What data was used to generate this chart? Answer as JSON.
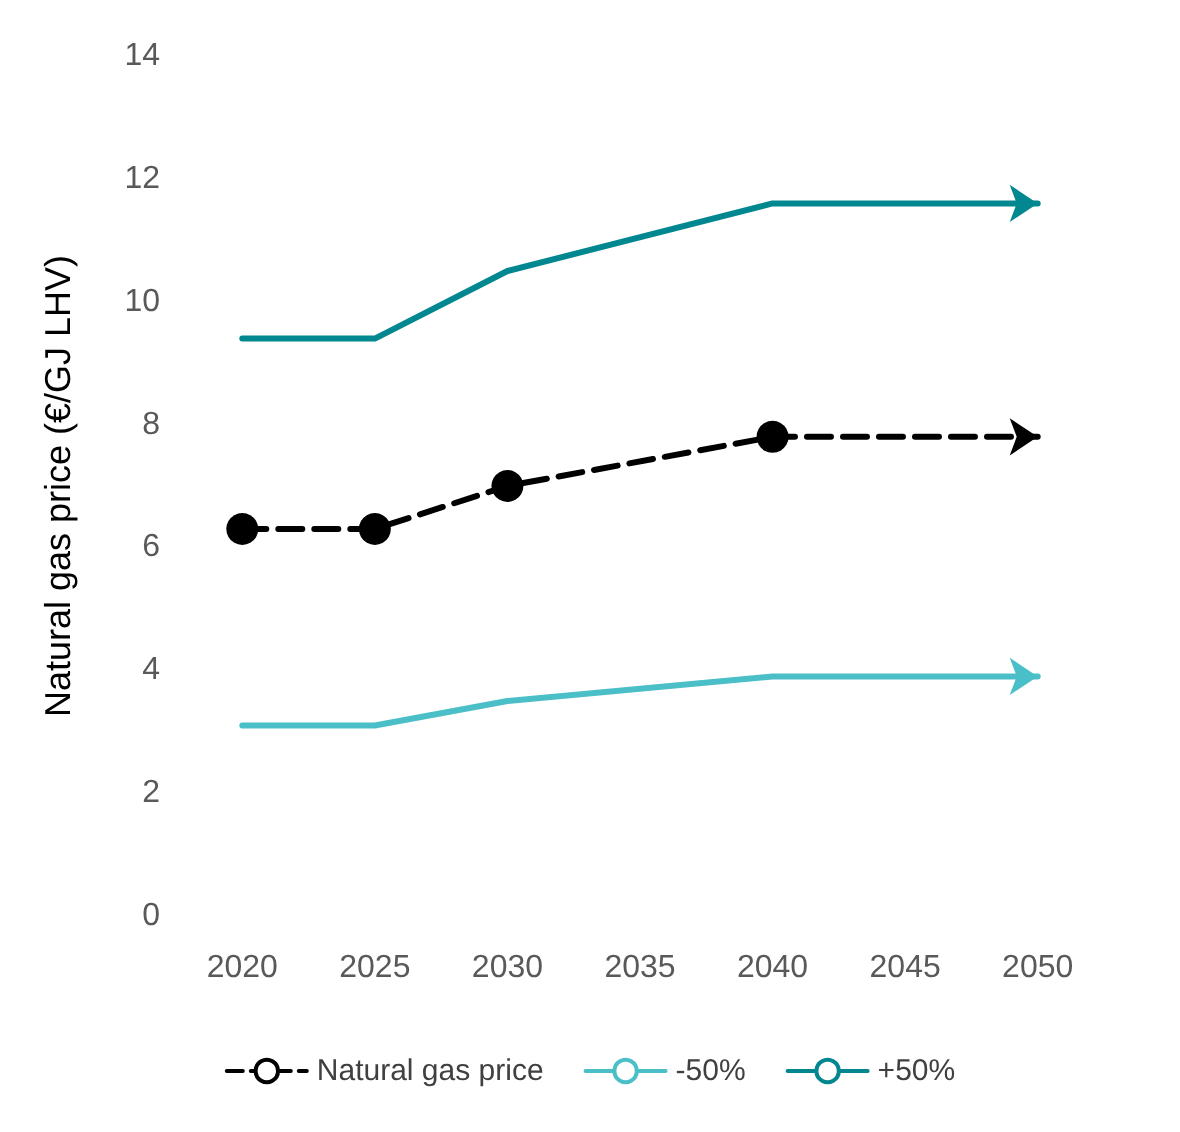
{
  "chart_data": {
    "type": "line",
    "ylabel": "Natural gas price (€/GJ LHV)",
    "categories": [
      "2020",
      "2025",
      "2030",
      "2035",
      "2040",
      "2045",
      "2050"
    ],
    "series": [
      {
        "name": "Natural gas price",
        "color": "#000000",
        "marker": "circle",
        "line_style": "dashed",
        "values": [
          6.3,
          6.3,
          7.0,
          null,
          7.8,
          null,
          7.8
        ]
      },
      {
        "name": "-50%",
        "color": "#4bbfc8",
        "marker": "none",
        "line_style": "solid",
        "values": [
          3.1,
          3.1,
          3.5,
          null,
          3.9,
          null,
          3.9
        ]
      },
      {
        "name": "+50%",
        "color": "#00878f",
        "marker": "none",
        "line_style": "solid",
        "values": [
          9.4,
          9.4,
          10.5,
          null,
          11.6,
          null,
          11.6
        ]
      }
    ],
    "ylim": [
      0,
      14
    ],
    "yticks": [
      0,
      2,
      4,
      6,
      8,
      10,
      12,
      14
    ],
    "grid": false,
    "legend": "bottom"
  }
}
